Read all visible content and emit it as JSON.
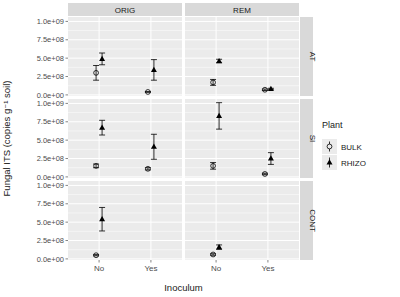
{
  "chart_data": {
    "type": "scatter",
    "x_label": "Inoculum",
    "y_label": "Fungal ITS (copies g⁻¹ soil)",
    "categories": [
      "No",
      "Yes"
    ],
    "facet_columns": [
      "ORIG",
      "REM"
    ],
    "facet_rows": [
      "AT",
      "SI",
      "CONT"
    ],
    "ylim": [
      -15000000,
      1060000000
    ],
    "yticks": [
      {
        "value": 0,
        "label": "0.0e+00"
      },
      {
        "value": 250000000,
        "label": "2.5e+08"
      },
      {
        "value": 500000000,
        "label": "5.0e+08"
      },
      {
        "value": 750000000,
        "label": "7.5e+08"
      },
      {
        "value": 1000000000,
        "label": "1.0e+09"
      }
    ],
    "grid": true,
    "legend": "right",
    "legend_title": "Plant",
    "series": [
      {
        "name": "BULK",
        "marker": "circle",
        "color": "#000000",
        "values": [
          [
            [
              300000000,
              40000000
            ],
            [
              170000000,
              70000000
            ]
          ],
          [
            [
              150000000,
              110000000
            ],
            [
              150000000,
              40000000
            ]
          ],
          [
            [
              50000000,
              null
            ],
            [
              60000000,
              null
            ]
          ]
        ],
        "errors": [
          [
            [
              100000000,
              5000000
            ],
            [
              40000000,
              10000000
            ]
          ],
          [
            [
              25000000,
              15000000
            ],
            [
              45000000,
              10000000
            ]
          ],
          [
            [
              8000000,
              null
            ],
            [
              10000000,
              null
            ]
          ]
        ]
      },
      {
        "name": "RHIZO",
        "marker": "triangle",
        "color": "#000000",
        "values": [
          [
            [
              490000000,
              340000000
            ],
            [
              460000000,
              80000000
            ]
          ],
          [
            [
              670000000,
              410000000
            ],
            [
              830000000,
              250000000
            ]
          ],
          [
            [
              540000000,
              null
            ],
            [
              160000000,
              null
            ]
          ]
        ],
        "errors": [
          [
            [
              80000000,
              140000000
            ],
            [
              25000000,
              10000000
            ]
          ],
          [
            [
              100000000,
              170000000
            ],
            [
              180000000,
              80000000
            ]
          ],
          [
            [
              160000000,
              null
            ],
            [
              30000000,
              null
            ]
          ]
        ]
      }
    ]
  }
}
